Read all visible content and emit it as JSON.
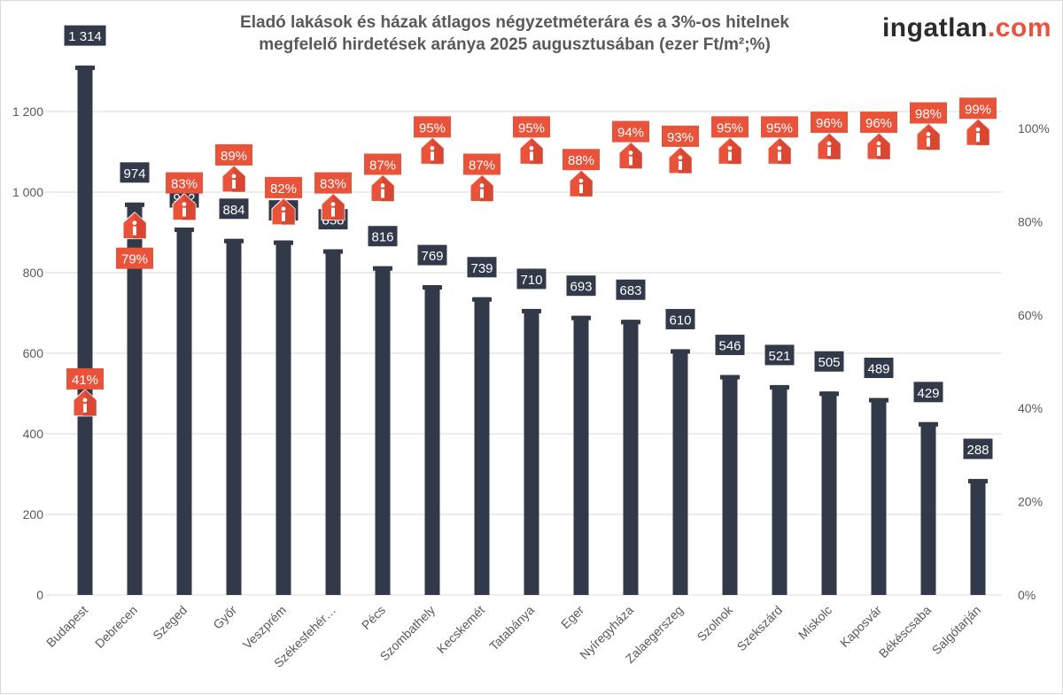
{
  "title_line1": "Eladó lakások és házak átlagos négyzetméterára és a 3%-os hitelnek",
  "title_line2": "megfelelő hirdetések aránya 2025 augusztusában (ezer Ft/m²;%)",
  "logo": {
    "main": "ingatlan",
    "suffix": ".com"
  },
  "colors": {
    "bar": "#323a4a",
    "percent": "#e8533a",
    "grid": "#d9d9d9",
    "axis_text": "#595959"
  },
  "chart_data": {
    "type": "bar",
    "title": "Eladó lakások és házak átlagos négyzetméterára és a 3%-os hitelnek megfelelő hirdetések aránya 2025 augusztusában (ezer Ft/m²;%)",
    "categories": [
      "Budapest",
      "Debrecen",
      "Szeged",
      "Győr",
      "Veszprém",
      "Székesfehér…",
      "Pécs",
      "Szombathely",
      "Kecskemét",
      "Tatabánya",
      "Eger",
      "Nyíregyháza",
      "Zalaegerszeg",
      "Szolnok",
      "Szekszárd",
      "Miskolc",
      "Kaposvár",
      "Békéscsaba",
      "Salgótarján"
    ],
    "series": [
      {
        "type": "bar",
        "axis": "left",
        "values": [
          1314,
          974,
          912,
          884,
          880,
          858,
          816,
          769,
          739,
          710,
          693,
          683,
          610,
          546,
          521,
          505,
          489,
          429,
          288
        ],
        "labels": [
          "1 314",
          "974",
          "912",
          "884",
          "880",
          "858",
          "816",
          "769",
          "739",
          "710",
          "693",
          "683",
          "610",
          "546",
          "521",
          "505",
          "489",
          "429",
          "288"
        ]
      },
      {
        "type": "marker",
        "axis": "right",
        "marker": "house-info-icon",
        "values": [
          41,
          79,
          83,
          89,
          82,
          83,
          87,
          95,
          87,
          95,
          88,
          94,
          93,
          95,
          95,
          96,
          96,
          98,
          99
        ]
      }
    ],
    "y_left": {
      "ticks": [
        "0",
        "200",
        "400",
        "600",
        "800",
        "1 000",
        "1 200"
      ],
      "range": [
        0,
        1400
      ]
    },
    "y_right": {
      "ticks": [
        "0%",
        "20%",
        "40%",
        "60%",
        "80%",
        "100%"
      ],
      "range": [
        0,
        120
      ]
    },
    "grid": true,
    "legend": "none"
  }
}
